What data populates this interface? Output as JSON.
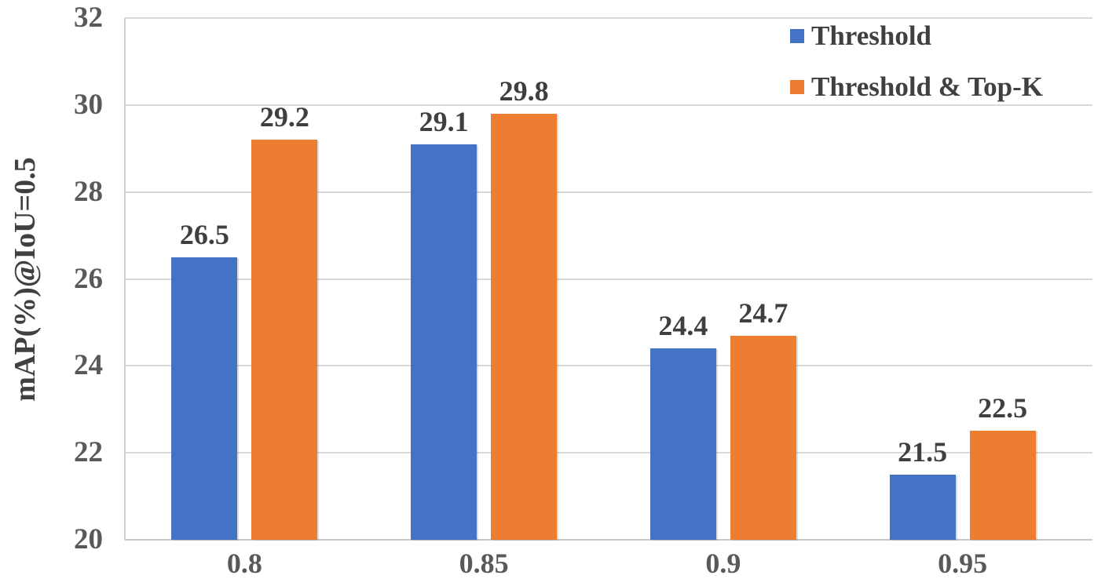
{
  "chart_data": {
    "type": "bar",
    "title": "",
    "xlabel": "",
    "ylabel": "mAP(%)@IoU=0.5",
    "categories": [
      "0.8",
      "0.85",
      "0.9",
      "0.95"
    ],
    "series": [
      {
        "name": "Threshold",
        "color": "#4472C4",
        "values": [
          26.5,
          29.1,
          24.4,
          21.5
        ]
      },
      {
        "name": "Threshold & Top-K",
        "color": "#ED7D31",
        "values": [
          29.2,
          29.8,
          24.7,
          22.5
        ]
      }
    ],
    "yticks": [
      20,
      22,
      24,
      26,
      28,
      30,
      32
    ],
    "ylim": [
      20,
      32
    ],
    "grid": true,
    "gridline_color": "#d9d9d9",
    "label_decimals": 1,
    "legend_position": "top-right"
  }
}
